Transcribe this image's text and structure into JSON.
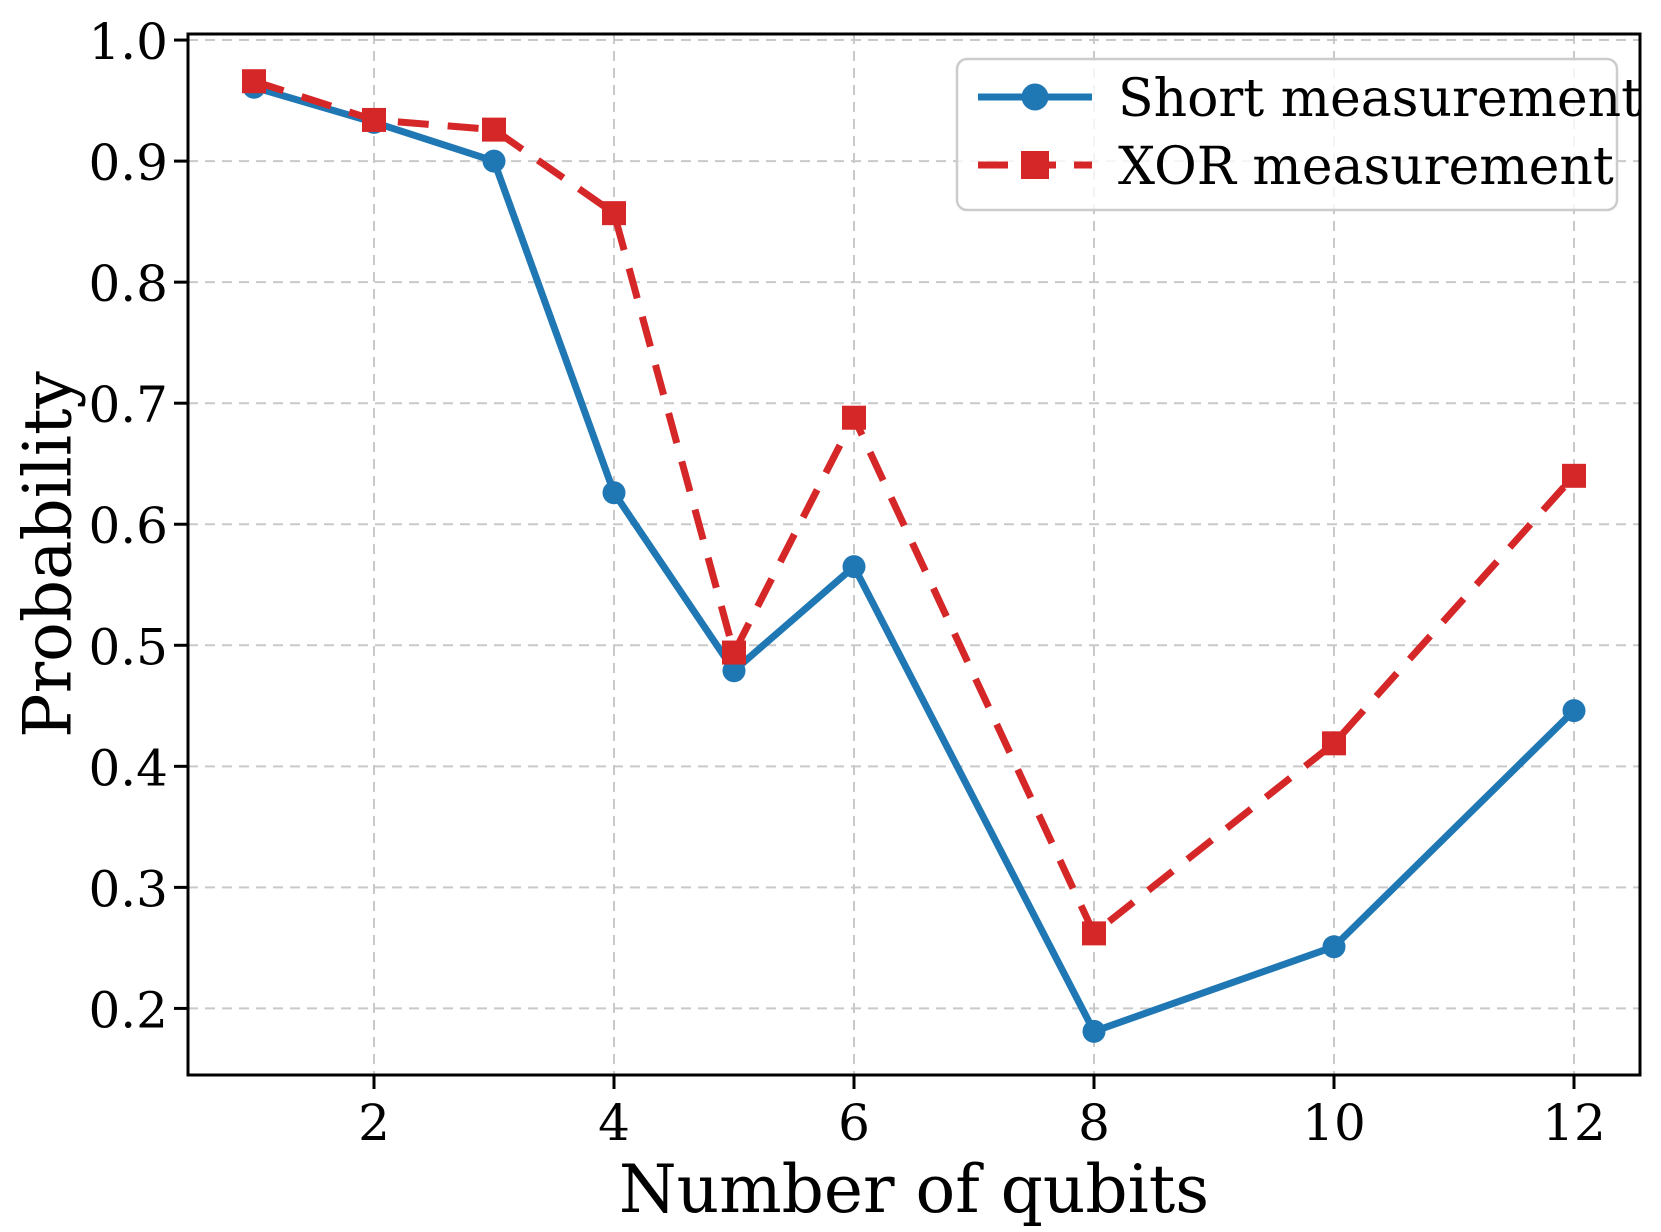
{
  "chart_data": {
    "type": "line",
    "title": "",
    "xlabel": "Number of qubits",
    "ylabel": "Probability",
    "x": [
      1,
      2,
      3,
      4,
      5,
      6,
      8,
      10,
      12
    ],
    "series": [
      {
        "name": "Short measurement",
        "color": "#1f77b4",
        "line_style": "solid",
        "marker": "circle",
        "values": [
          0.961,
          0.932,
          0.9,
          0.626,
          0.479,
          0.565,
          0.181,
          0.251,
          0.446
        ]
      },
      {
        "name": "XOR measurement",
        "color": "#d62728",
        "line_style": "dashed",
        "marker": "square",
        "values": [
          0.966,
          0.934,
          0.926,
          0.857,
          0.494,
          0.688,
          0.262,
          0.419,
          0.64
        ]
      }
    ],
    "xticks": [
      2,
      4,
      6,
      8,
      10,
      12
    ],
    "xtick_labels": [
      "2",
      "4",
      "6",
      "8",
      "10",
      "12"
    ],
    "yticks": [
      0.2,
      0.3,
      0.4,
      0.5,
      0.6,
      0.7,
      0.8,
      0.9,
      1.0
    ],
    "ytick_labels": [
      "0.2",
      "0.3",
      "0.4",
      "0.5",
      "0.6",
      "0.7",
      "0.8",
      "0.9",
      "1.0"
    ],
    "xlim": [
      0.45,
      12.55
    ],
    "ylim": [
      0.145,
      1.005
    ],
    "grid": true,
    "grid_style": "dashed",
    "legend_position": "upper right"
  },
  "style": {
    "grid_color": "#c9c9c9",
    "spine_color": "#000000",
    "tick_color": "#000000",
    "legend_border_color": "#cccccc",
    "legend_background": "rgba(255,255,255,0.8)",
    "figure_background": "#ffffff"
  }
}
